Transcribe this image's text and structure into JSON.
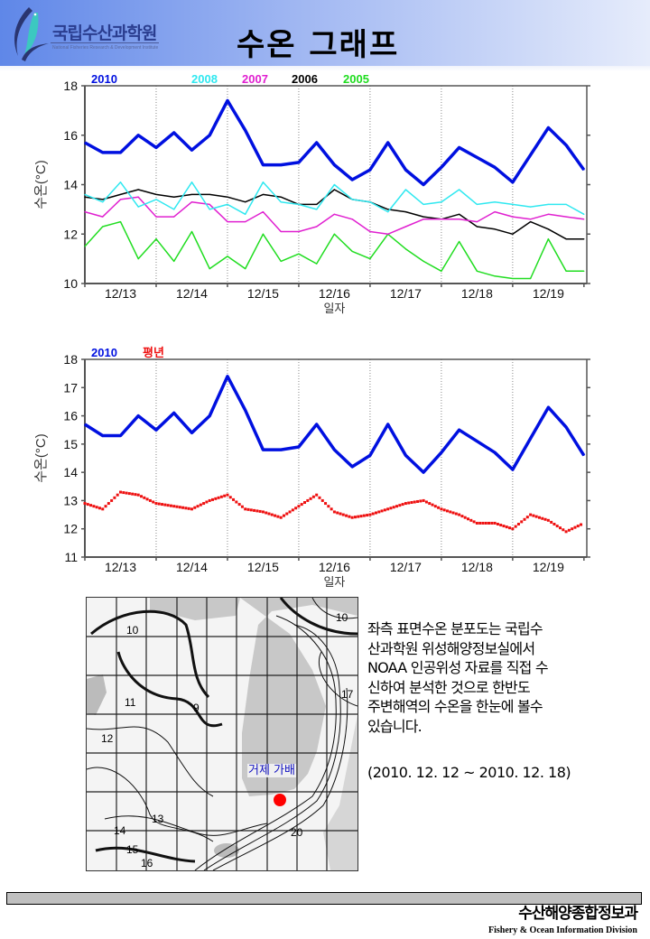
{
  "header": {
    "org_name_kr": "국립수산과학원",
    "org_name_en": "National Fisheries Research & Development Institute",
    "title": "수온 그래프"
  },
  "chart_data": [
    {
      "type": "line",
      "title": "",
      "xlabel": "일자",
      "ylabel": "수온(°C)",
      "ylim": [
        10,
        18
      ],
      "yticks": [
        "10",
        "12",
        "14",
        "16",
        "18"
      ],
      "categories": [
        "12/13",
        "12/14",
        "12/15",
        "12/16",
        "12/17",
        "12/18",
        "12/19"
      ],
      "xlim_days": [
        0,
        7.04
      ],
      "grid": "vertical-dotted",
      "legend": "top-left",
      "x": [
        0,
        0.25,
        0.5,
        0.75,
        1,
        1.25,
        1.5,
        1.75,
        2,
        2.25,
        2.5,
        2.75,
        3,
        3.25,
        3.5,
        3.75,
        4,
        4.25,
        4.5,
        4.75,
        5,
        5.25,
        5.5,
        5.75,
        6,
        6.25,
        6.5,
        6.75,
        7
      ],
      "series": [
        {
          "name": "2010",
          "color": "#0010e0",
          "values": [
            15.7,
            15.3,
            15.3,
            16.0,
            15.5,
            16.1,
            15.4,
            16.0,
            17.4,
            16.2,
            14.8,
            14.8,
            14.9,
            15.7,
            14.8,
            14.2,
            14.6,
            15.7,
            14.6,
            14.0,
            14.7,
            15.5,
            15.1,
            14.7,
            14.1,
            15.2,
            16.3,
            15.6,
            14.6
          ]
        },
        {
          "name": "2008",
          "color": "#30e8f0",
          "values": [
            13.6,
            13.3,
            14.1,
            13.1,
            13.4,
            13.0,
            14.1,
            13.0,
            13.2,
            12.8,
            14.1,
            13.3,
            13.2,
            13.0,
            14.0,
            13.4,
            13.3,
            12.9,
            13.8,
            13.2,
            13.3,
            13.8,
            13.2,
            13.3,
            13.2,
            13.1,
            13.2,
            13.2,
            12.8
          ]
        },
        {
          "name": "2007",
          "color": "#e020d0",
          "values": [
            12.9,
            12.7,
            13.4,
            13.5,
            12.7,
            12.7,
            13.3,
            13.2,
            12.5,
            12.5,
            12.9,
            12.1,
            12.1,
            12.3,
            12.8,
            12.6,
            12.1,
            12.0,
            12.3,
            12.6,
            12.6,
            12.6,
            12.5,
            12.9,
            12.7,
            12.6,
            12.8,
            12.7,
            12.6
          ]
        },
        {
          "name": "2006",
          "color": "#000000",
          "values": [
            13.5,
            13.4,
            13.6,
            13.8,
            13.6,
            13.5,
            13.6,
            13.6,
            13.5,
            13.3,
            13.6,
            13.5,
            13.2,
            13.2,
            13.8,
            13.4,
            13.3,
            13.0,
            12.9,
            12.7,
            12.6,
            12.8,
            12.3,
            12.2,
            12.0,
            12.5,
            12.2,
            11.8,
            11.8
          ]
        },
        {
          "name": "2005",
          "color": "#20dd20",
          "values": [
            11.5,
            12.3,
            12.5,
            11.0,
            11.8,
            10.9,
            12.1,
            10.6,
            11.1,
            10.6,
            12.0,
            10.9,
            11.2,
            10.8,
            12.0,
            11.3,
            11.0,
            12.0,
            11.4,
            10.9,
            10.5,
            11.7,
            10.5,
            10.3,
            10.2,
            10.2,
            11.8,
            10.5,
            10.5
          ]
        }
      ]
    },
    {
      "type": "line",
      "title": "",
      "xlabel": "일자",
      "ylabel": "수온(°C)",
      "ylim": [
        11,
        18
      ],
      "yticks": [
        "11",
        "12",
        "13",
        "14",
        "15",
        "16",
        "17",
        "18"
      ],
      "categories": [
        "12/13",
        "12/14",
        "12/15",
        "12/16",
        "12/17",
        "12/18",
        "12/19"
      ],
      "xlim_days": [
        0,
        7.04
      ],
      "grid": "vertical-dotted",
      "legend": "top-left",
      "x": [
        0,
        0.25,
        0.5,
        0.75,
        1,
        1.25,
        1.5,
        1.75,
        2,
        2.25,
        2.5,
        2.75,
        3,
        3.25,
        3.5,
        3.75,
        4,
        4.25,
        4.5,
        4.75,
        5,
        5.25,
        5.5,
        5.75,
        6,
        6.25,
        6.5,
        6.75,
        7
      ],
      "series": [
        {
          "name": "2010",
          "color": "#0010e0",
          "values": [
            15.7,
            15.3,
            15.3,
            16.0,
            15.5,
            16.1,
            15.4,
            16.0,
            17.4,
            16.2,
            14.8,
            14.8,
            14.9,
            15.7,
            14.8,
            14.2,
            14.6,
            15.7,
            14.6,
            14.0,
            14.7,
            15.5,
            15.1,
            14.7,
            14.1,
            15.2,
            16.3,
            15.6,
            14.6
          ]
        },
        {
          "name": "평년",
          "color": "#ee1010",
          "values": [
            12.9,
            12.7,
            13.3,
            13.2,
            12.9,
            12.8,
            12.7,
            13.0,
            13.2,
            12.7,
            12.6,
            12.4,
            12.8,
            13.2,
            12.6,
            12.4,
            12.5,
            12.7,
            12.9,
            13.0,
            12.7,
            12.5,
            12.2,
            12.2,
            12.0,
            12.5,
            12.3,
            11.9,
            12.2
          ]
        }
      ]
    }
  ],
  "map": {
    "location_label": "거제 가배",
    "marker_color": "#ff0000",
    "contour_labels": [
      "10",
      "11",
      "9",
      "12",
      "13",
      "14",
      "15",
      "16",
      "17",
      "10",
      "20"
    ]
  },
  "description": {
    "lines": [
      "좌측 표면수온 분포도는 국립수",
      "산과학원 위성해양정보실에서",
      "NOAA 인공위성 자료를 직접 수",
      "신하여 분석한 것으로  한반도",
      "주변해역의 수온을 한눈에 볼수",
      "있습니다."
    ],
    "period": "(2010. 12. 12 ~ 2010. 12. 18)"
  },
  "footer": {
    "division_kr": "수산해양종합정보과",
    "division_en": "Fishery & Ocean Information Division"
  }
}
